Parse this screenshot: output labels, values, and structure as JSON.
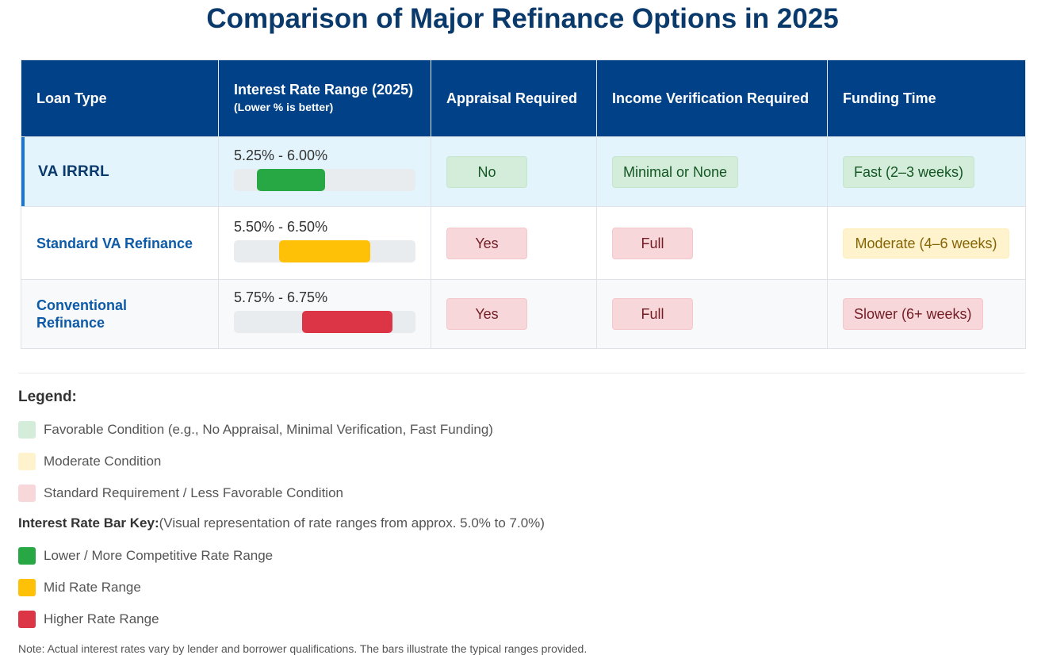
{
  "title": "Comparison of Major Refinance Options in 2025",
  "table": {
    "headers": {
      "loan_type": "Loan Type",
      "rate_range": "Interest Rate Range (2025)",
      "rate_range_sub": "(Lower % is better)",
      "appraisal": "Appraisal Required",
      "income": "Income Verification Required",
      "funding": "Funding Time"
    },
    "rows": [
      {
        "loan_type": "VA IRRRL",
        "rate_text": "5.25% - 6.00%",
        "appraisal": "No",
        "income": "Minimal or None",
        "funding": "Fast (2–3 weeks)"
      },
      {
        "loan_type": "Standard VA Refinance",
        "rate_text": "5.50% - 6.50%",
        "appraisal": "Yes",
        "income": "Full",
        "funding": "Moderate (4–6 weeks)"
      },
      {
        "loan_type": "Conventional Refinance",
        "rate_text": "5.75% - 6.75%",
        "appraisal": "Yes",
        "income": "Full",
        "funding": "Slower (6+ weeks)"
      }
    ]
  },
  "chart_data": {
    "type": "bar",
    "categories": [
      "VA IRRRL",
      "Standard VA Refinance",
      "Conventional Refinance"
    ],
    "ranges": [
      [
        5.25,
        6.0
      ],
      [
        5.5,
        6.5
      ],
      [
        5.75,
        6.75
      ]
    ],
    "xlim": [
      5.0,
      7.0
    ],
    "colors": [
      "#28a745",
      "#ffc107",
      "#dc3545"
    ]
  },
  "legend": {
    "title": "Legend:",
    "conditions": [
      {
        "label": "Favorable Condition (e.g., No Appraisal, Minimal Verification, Fast Funding)",
        "color": "#d4edda"
      },
      {
        "label": "Moderate Condition",
        "color": "#fff3cd"
      },
      {
        "label": "Standard Requirement / Less Favorable Condition",
        "color": "#f8d7da"
      }
    ],
    "bar_key_title": "Interest Rate Bar Key:",
    "bar_key_desc": "(Visual representation of rate ranges from approx. 5.0% to 7.0%)",
    "bar_keys": [
      {
        "label": "Lower / More Competitive Rate Range",
        "color": "#28a745"
      },
      {
        "label": "Mid Rate Range",
        "color": "#ffc107"
      },
      {
        "label": "Higher Rate Range",
        "color": "#dc3545"
      }
    ]
  },
  "note": "Note: Actual interest rates vary by lender and borrower qualifications. The bars illustrate the typical ranges provided."
}
